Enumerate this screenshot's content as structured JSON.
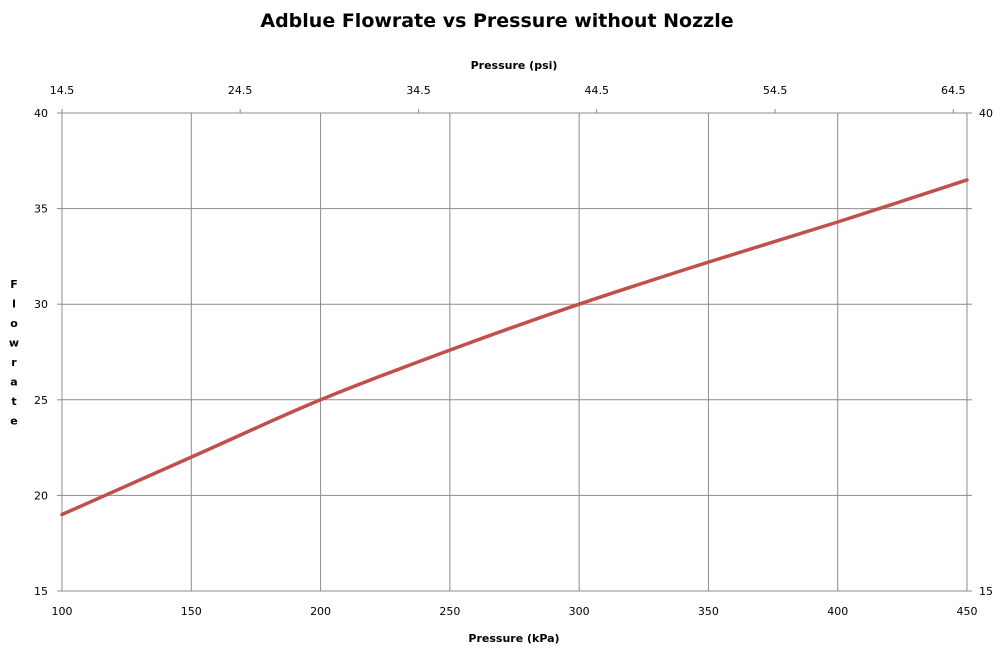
{
  "chart_data": {
    "type": "line",
    "title": "Adblue Flowrate vs Pressure without Nozzle",
    "xlabel": "Pressure (kPa)",
    "x2label": "Pressure (psi)",
    "ylabel": "Flowrate",
    "xlim": [
      100,
      450
    ],
    "ylim": [
      15,
      40
    ],
    "x_ticks": [
      100,
      150,
      200,
      250,
      300,
      350,
      400,
      450
    ],
    "x2_ticks": [
      "14.5",
      "24.5",
      "34.5",
      "44.5",
      "54.5",
      "64.5"
    ],
    "x2_tick_kpa": [
      100,
      168.9,
      237.9,
      306.8,
      375.8,
      444.7
    ],
    "y_ticks": [
      15,
      20,
      25,
      30,
      35,
      40
    ],
    "y2_ticks": [
      15,
      40
    ],
    "grid": true,
    "series": [
      {
        "color": "#c0504d",
        "x": [
          100,
          150,
          200,
          250,
          300,
          350,
          400,
          450
        ],
        "y": [
          19.0,
          22.0,
          25.0,
          27.6,
          30.0,
          32.2,
          34.3,
          36.5
        ]
      }
    ]
  }
}
